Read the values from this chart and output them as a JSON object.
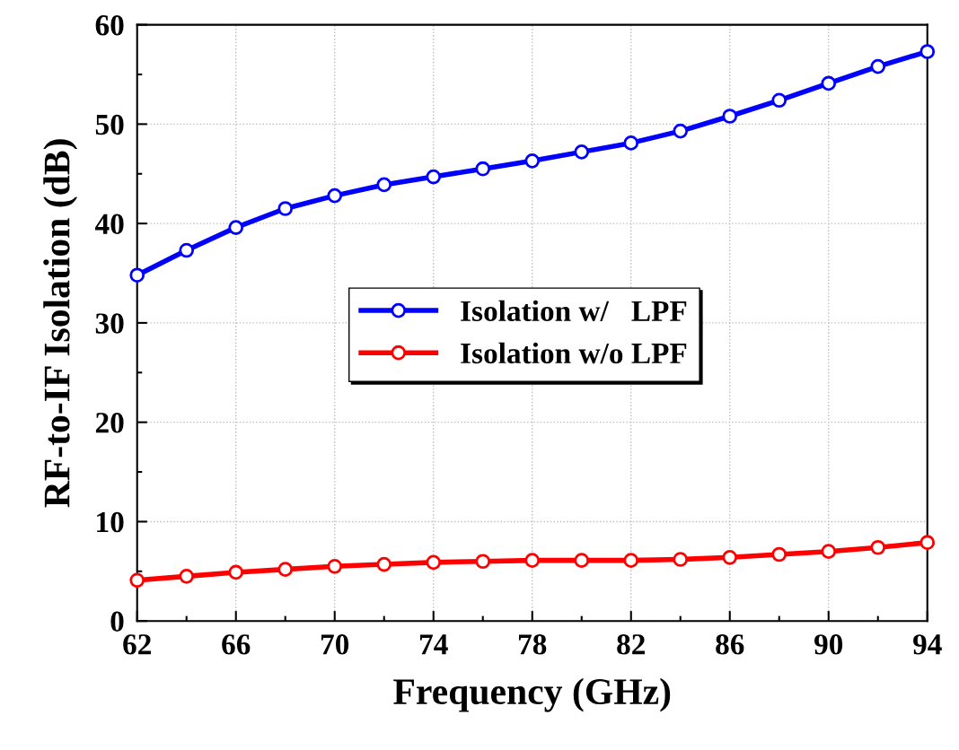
{
  "chart_data": {
    "type": "line",
    "xlabel": "Frequency (GHz)",
    "ylabel": "RF-to-IF Isolation (dB)",
    "x": [
      62,
      64,
      66,
      68,
      70,
      72,
      74,
      76,
      78,
      80,
      82,
      84,
      86,
      88,
      90,
      92,
      94
    ],
    "series": [
      {
        "name": "Isolation w/   LPF",
        "color": "#0000ff",
        "values": [
          34.8,
          37.3,
          39.6,
          41.5,
          42.8,
          43.9,
          44.7,
          45.5,
          46.3,
          47.2,
          48.1,
          49.3,
          50.8,
          52.4,
          54.1,
          55.8,
          57.3
        ]
      },
      {
        "name": "Isolation w/o LPF",
        "color": "#ff0000",
        "values": [
          4.1,
          4.5,
          4.9,
          5.2,
          5.5,
          5.7,
          5.9,
          6.0,
          6.1,
          6.1,
          6.1,
          6.2,
          6.4,
          6.7,
          7.0,
          7.4,
          7.9
        ]
      }
    ],
    "xlim": [
      62,
      94
    ],
    "xticks": [
      62,
      66,
      70,
      74,
      78,
      82,
      86,
      90,
      94
    ],
    "ylim": [
      0,
      60
    ],
    "yticks": [
      0,
      10,
      20,
      30,
      40,
      50,
      60
    ],
    "grid": true,
    "legend": "center",
    "marker": "circle",
    "line_style": "solid"
  }
}
